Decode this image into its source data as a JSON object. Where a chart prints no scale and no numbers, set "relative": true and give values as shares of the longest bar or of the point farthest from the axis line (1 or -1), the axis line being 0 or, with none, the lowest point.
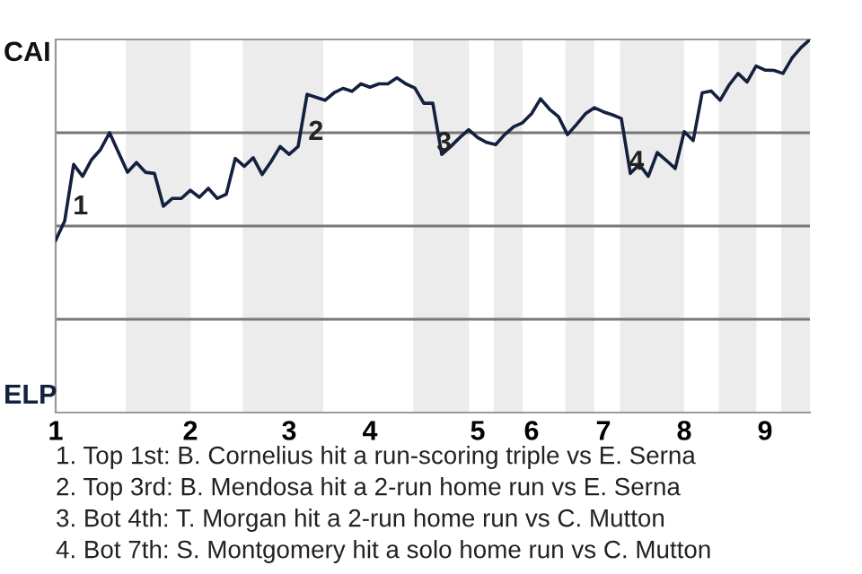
{
  "chart_data": {
    "type": "line",
    "relative": true,
    "categories": [
      "1",
      null,
      null,
      null,
      null,
      null,
      null,
      null,
      null,
      null,
      null,
      null,
      null,
      null,
      null,
      "2",
      null,
      null,
      null,
      null,
      null,
      null,
      null,
      null,
      null,
      null,
      "3",
      null,
      null,
      null,
      null,
      null,
      null,
      null,
      null,
      "4",
      null,
      null,
      null,
      null,
      null,
      null,
      null,
      null,
      null,
      null,
      null,
      "5",
      null,
      null,
      null,
      null,
      null,
      "6",
      null,
      null,
      null,
      null,
      null,
      null,
      null,
      "7",
      null,
      null,
      null,
      null,
      null,
      null,
      null,
      null,
      "8",
      null,
      null,
      null,
      null,
      null,
      null,
      null,
      null,
      "9",
      null,
      null,
      null,
      null,
      null
    ],
    "series": [
      {
        "color": "#13213f",
        "values": [
          0.462,
          0.513,
          0.665,
          0.633,
          0.678,
          0.705,
          0.75,
          0.697,
          0.644,
          0.67,
          0.644,
          0.641,
          0.553,
          0.574,
          0.574,
          0.596,
          0.577,
          0.601,
          0.574,
          0.585,
          0.681,
          0.66,
          0.683,
          0.638,
          0.673,
          0.713,
          0.692,
          0.713,
          0.853,
          0.845,
          0.837,
          0.857,
          0.869,
          0.861,
          0.881,
          0.872,
          0.881,
          0.881,
          0.897,
          0.881,
          0.87,
          0.829,
          0.829,
          0.692,
          0.713,
          0.737,
          0.758,
          0.737,
          0.724,
          0.718,
          0.745,
          0.766,
          0.777,
          0.801,
          0.841,
          0.813,
          0.793,
          0.745,
          0.772,
          0.801,
          0.817,
          0.806,
          0.798,
          0.788,
          0.641,
          0.665,
          0.633,
          0.697,
          0.676,
          0.654,
          0.753,
          0.729,
          0.857,
          0.862,
          0.837,
          0.878,
          0.909,
          0.886,
          0.929,
          0.918,
          0.917,
          0.909,
          0.95,
          0.978,
          1
        ]
      }
    ],
    "marker": "none",
    "line_style": "solid",
    "legend": false,
    "ref_lines": [
      {
        "axis": "y",
        "value": 0.25,
        "color": "#777777"
      },
      {
        "axis": "y",
        "value": 0.5,
        "color": "#777777"
      },
      {
        "axis": "y",
        "value": 0.75,
        "color": "#777777"
      }
    ],
    "annotations": [
      "1",
      "2",
      "3",
      "4",
      "CAI",
      "ELP",
      "1. Top 1st: B. Cornelius hit a run-scoring triple vs E. Serna",
      "2. Top 3rd: B. Mendosa hit a 2-run home run vs E. Serna",
      "3. Bot 4th: T. Morgan hit a 2-run home run vs C. Mutton",
      "4. Bot 7th: S. Montgomery hit a solo home run vs C. Mutton"
    ]
  }
}
